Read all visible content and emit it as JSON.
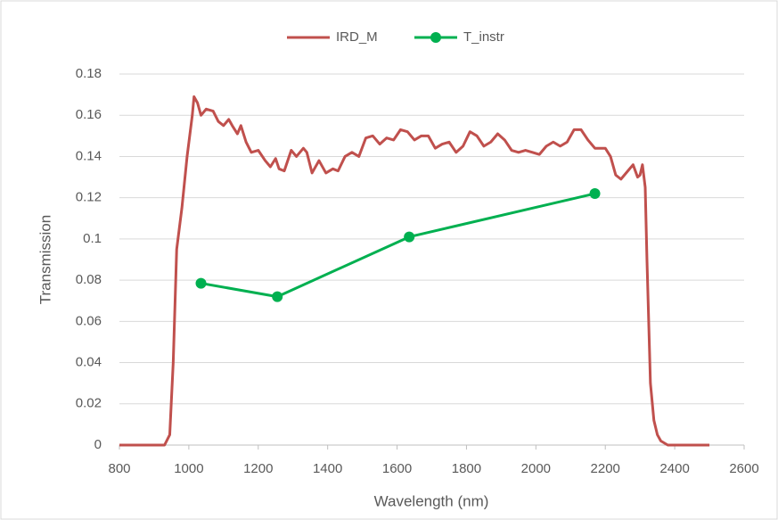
{
  "chart_data": {
    "type": "line",
    "x_label": "Wavelength (nm)",
    "y_label": "Transmission",
    "xlim": [
      800,
      2600
    ],
    "xticks": [
      800,
      1000,
      1200,
      1400,
      1600,
      1800,
      2000,
      2200,
      2400,
      2600
    ],
    "ylim": [
      0,
      0.18
    ],
    "yticks": [
      0,
      0.02,
      0.04,
      0.06,
      0.08,
      0.1,
      0.12,
      0.14,
      0.16,
      0.18
    ],
    "grid": true,
    "legend": "top",
    "series": [
      {
        "name": "IRD_M",
        "color": "#c0504d",
        "markers": false,
        "x": [
          800,
          900,
          930,
          945,
          955,
          965,
          980,
          995,
          1010,
          1015,
          1025,
          1035,
          1050,
          1070,
          1085,
          1100,
          1115,
          1125,
          1140,
          1150,
          1165,
          1180,
          1200,
          1220,
          1235,
          1250,
          1260,
          1275,
          1295,
          1310,
          1330,
          1340,
          1355,
          1375,
          1395,
          1415,
          1430,
          1450,
          1470,
          1490,
          1510,
          1530,
          1550,
          1570,
          1590,
          1610,
          1630,
          1650,
          1670,
          1690,
          1710,
          1730,
          1750,
          1770,
          1790,
          1810,
          1830,
          1850,
          1870,
          1890,
          1910,
          1930,
          1950,
          1970,
          1990,
          2010,
          2030,
          2050,
          2070,
          2090,
          2110,
          2130,
          2150,
          2170,
          2190,
          2200,
          2215,
          2230,
          2245,
          2265,
          2280,
          2293,
          2300,
          2307,
          2315,
          2320,
          2330,
          2340,
          2350,
          2360,
          2380,
          2500
        ],
        "values": [
          0,
          0,
          0,
          0.005,
          0.04,
          0.095,
          0.115,
          0.14,
          0.16,
          0.169,
          0.166,
          0.16,
          0.163,
          0.162,
          0.157,
          0.155,
          0.158,
          0.155,
          0.151,
          0.155,
          0.147,
          0.142,
          0.143,
          0.138,
          0.135,
          0.139,
          0.134,
          0.133,
          0.143,
          0.14,
          0.144,
          0.142,
          0.132,
          0.138,
          0.132,
          0.134,
          0.133,
          0.14,
          0.142,
          0.14,
          0.149,
          0.15,
          0.146,
          0.149,
          0.148,
          0.153,
          0.152,
          0.148,
          0.15,
          0.15,
          0.144,
          0.146,
          0.147,
          0.142,
          0.145,
          0.152,
          0.15,
          0.145,
          0.147,
          0.151,
          0.148,
          0.143,
          0.142,
          0.143,
          0.142,
          0.141,
          0.145,
          0.147,
          0.145,
          0.147,
          0.153,
          0.153,
          0.148,
          0.144,
          0.144,
          0.144,
          0.14,
          0.131,
          0.129,
          0.133,
          0.136,
          0.13,
          0.131,
          0.136,
          0.125,
          0.09,
          0.03,
          0.012,
          0.005,
          0.002,
          0,
          0
        ]
      },
      {
        "name": "T_instr",
        "color": "#00b050",
        "markers": true,
        "x": [
          1035,
          1255,
          1635,
          2170
        ],
        "values": [
          0.0785,
          0.072,
          0.101,
          0.122
        ]
      }
    ]
  }
}
